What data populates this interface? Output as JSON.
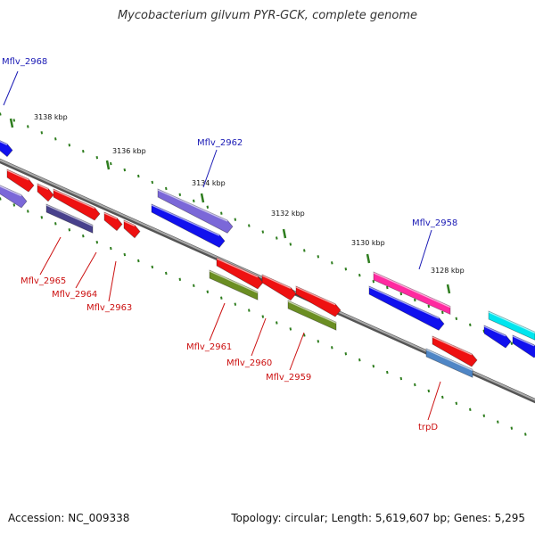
{
  "title": "Mycobacterium gilvum PYR-GCK, complete genome",
  "accession": "Accession: NC_009338",
  "topology": "Topology: circular; Length: 5,619,607 bp; Genes: 5,295",
  "colors": {
    "backbone": "#808080",
    "tick": "#2e7d1e",
    "label_blue": "#1a1ab5",
    "label_red": "#cc1111",
    "label_black": "#111111"
  },
  "ruler_labels": [
    "3138 kbp",
    "3136 kbp",
    "3134 kbp",
    "3132 kbp",
    "3130 kbp",
    "3128 kbp"
  ],
  "genes": [
    {
      "id": "Mflv_2968",
      "color": "#1111ee",
      "strand": "forward"
    },
    {
      "id": "Mflv_2962",
      "color": "#7b68d8",
      "strand": "forward"
    },
    {
      "id": "Mflv_2958",
      "color": "#ff2aa0",
      "strand": "forward"
    },
    {
      "id": "Mflv_2965",
      "color": "#ee1111",
      "strand": "forward"
    },
    {
      "id": "Mflv_2964",
      "color": "#ee1111",
      "strand": "forward"
    },
    {
      "id": "Mflv_2963",
      "color": "#ee1111",
      "strand": "forward"
    },
    {
      "id": "Mflv_2961",
      "color": "#ee1111",
      "strand": "forward"
    },
    {
      "id": "Mflv_2960",
      "color": "#ee1111",
      "strand": "forward"
    },
    {
      "id": "Mflv_2959",
      "color": "#ee1111",
      "strand": "forward"
    },
    {
      "id": "trpD",
      "color": "#ee1111",
      "strand": "forward"
    }
  ],
  "gene_labels": {
    "top": [
      {
        "text": "Mflv_2968",
        "color": "#1a1ab5"
      },
      {
        "text": "Mflv_2962",
        "color": "#1a1ab5"
      },
      {
        "text": "Mflv_2958",
        "color": "#1a1ab5"
      }
    ],
    "bottom": [
      {
        "text": "Mflv_2965",
        "color": "#cc1111"
      },
      {
        "text": "Mflv_2964",
        "color": "#cc1111"
      },
      {
        "text": "Mflv_2963",
        "color": "#cc1111"
      },
      {
        "text": "Mflv_2961",
        "color": "#cc1111"
      },
      {
        "text": "Mflv_2960",
        "color": "#cc1111"
      },
      {
        "text": "Mflv_2959",
        "color": "#cc1111"
      },
      {
        "text": "trpD",
        "color": "#cc1111"
      }
    ]
  },
  "feature_colors": {
    "blue": "#1111ee",
    "slate_blue": "#7b68d8",
    "dark_slate": "#48418c",
    "red": "#ee1111",
    "olive": "#6b8e23",
    "pink": "#ff2aa0",
    "cyan": "#00e5ee",
    "steel_blue": "#4f86c6"
  }
}
